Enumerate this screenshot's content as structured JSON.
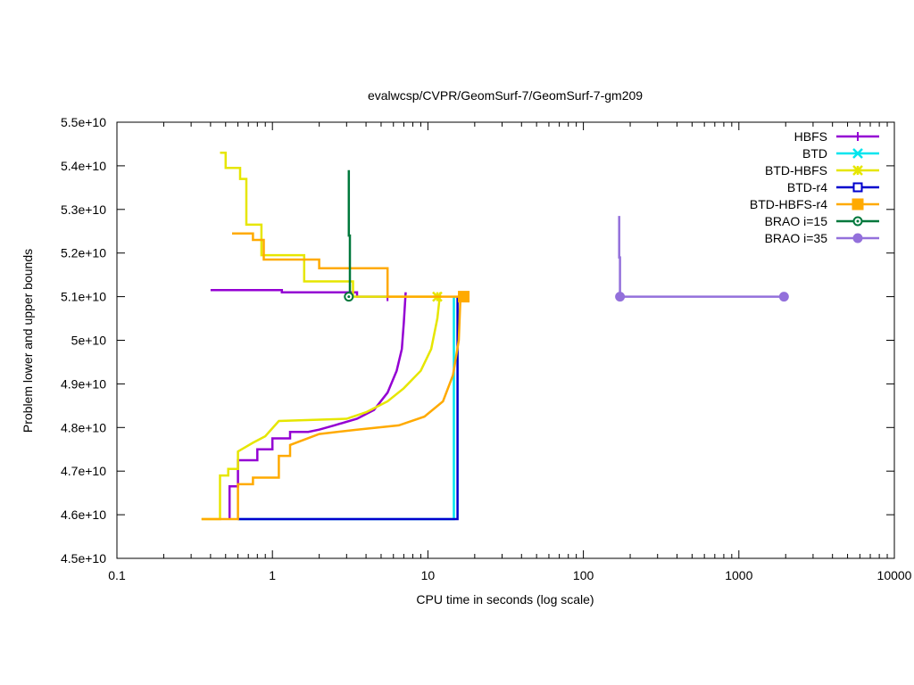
{
  "chart_data": {
    "type": "line",
    "title": "evalwcsp/CVPR/GeomSurf-7/GeomSurf-7-gm209",
    "xlabel": "CPU time in seconds (log scale)",
    "ylabel": "Problem lower and upper bounds",
    "xscale": "log",
    "xlim": [
      0.1,
      10000
    ],
    "ylim": [
      45000000000,
      55000000000
    ],
    "x_ticks": [
      {
        "v": 0.1,
        "label": "0.1"
      },
      {
        "v": 1,
        "label": "1"
      },
      {
        "v": 10,
        "label": "10"
      },
      {
        "v": 100,
        "label": "100"
      },
      {
        "v": 1000,
        "label": "1000"
      },
      {
        "v": 10000,
        "label": "10000"
      }
    ],
    "y_ticks": [
      {
        "v": 45000000000,
        "label": "4.5e+10"
      },
      {
        "v": 46000000000,
        "label": "4.6e+10"
      },
      {
        "v": 47000000000,
        "label": "4.7e+10"
      },
      {
        "v": 48000000000,
        "label": "4.8e+10"
      },
      {
        "v": 49000000000,
        "label": "4.9e+10"
      },
      {
        "v": 50000000000,
        "label": "5e+10"
      },
      {
        "v": 51000000000,
        "label": "5.1e+10"
      },
      {
        "v": 52000000000,
        "label": "5.2e+10"
      },
      {
        "v": 53000000000,
        "label": "5.3e+10"
      },
      {
        "v": 54000000000,
        "label": "5.4e+10"
      },
      {
        "v": 55000000000,
        "label": "5.5e+10"
      }
    ],
    "legend_position": "top-right",
    "grid": false,
    "series": [
      {
        "name": "HBFS",
        "color": "#9400d3",
        "marker": "plus",
        "marker_at": [
          5.5,
          51000000000
        ],
        "lines": [
          [
            [
              0.4,
              51150000000
            ],
            [
              1.15,
              51150000000
            ],
            [
              1.15,
              51100000000
            ],
            [
              3.5,
              51100000000
            ],
            [
              3.5,
              51000000000
            ],
            [
              5.5,
              51000000000
            ]
          ],
          [
            [
              0.53,
              45900000000
            ],
            [
              0.53,
              46650000000
            ],
            [
              0.6,
              46650000000
            ],
            [
              0.6,
              47250000000
            ],
            [
              0.8,
              47250000000
            ],
            [
              0.8,
              47500000000
            ],
            [
              1.0,
              47500000000
            ],
            [
              1.0,
              47750000000
            ],
            [
              1.3,
              47750000000
            ],
            [
              1.3,
              47900000000
            ],
            [
              1.7,
              47900000000
            ],
            [
              2.0,
              47950000000
            ],
            [
              2.5,
              48050000000
            ],
            [
              3.5,
              48200000000
            ],
            [
              4.5,
              48400000000
            ],
            [
              5.5,
              48800000000
            ],
            [
              6.3,
              49300000000
            ],
            [
              6.8,
              49800000000
            ],
            [
              7.0,
              50400000000
            ],
            [
              7.2,
              51100000000
            ]
          ]
        ]
      },
      {
        "name": "BTD",
        "color": "#00e5ee",
        "marker": "cross",
        "marker_at": null,
        "lines": [
          [
            [
              0.6,
              45900000000
            ],
            [
              14.7,
              45900000000
            ],
            [
              14.7,
              51000000000
            ]
          ]
        ]
      },
      {
        "name": "BTD-HBFS",
        "color": "#e6e600",
        "marker": "star",
        "marker_at": [
          11.5,
          51000000000
        ],
        "lines": [
          [
            [
              0.46,
              54300000000
            ],
            [
              0.5,
              54300000000
            ],
            [
              0.5,
              53950000000
            ],
            [
              0.62,
              53950000000
            ],
            [
              0.62,
              53700000000
            ],
            [
              0.68,
              53700000000
            ],
            [
              0.68,
              52650000000
            ],
            [
              0.85,
              52650000000
            ],
            [
              0.85,
              51950000000
            ],
            [
              1.6,
              51950000000
            ],
            [
              1.6,
              51350000000
            ],
            [
              3.3,
              51350000000
            ],
            [
              3.3,
              51000000000
            ],
            [
              11.5,
              51000000000
            ]
          ],
          [
            [
              0.35,
              45900000000
            ],
            [
              0.46,
              45900000000
            ],
            [
              0.46,
              46900000000
            ],
            [
              0.52,
              46900000000
            ],
            [
              0.52,
              47050000000
            ],
            [
              0.6,
              47050000000
            ],
            [
              0.6,
              47450000000
            ],
            [
              0.75,
              47650000000
            ],
            [
              0.9,
              47800000000
            ],
            [
              1.1,
              48150000000
            ],
            [
              3.0,
              48200000000
            ],
            [
              4.0,
              48350000000
            ],
            [
              5.5,
              48600000000
            ],
            [
              7.0,
              48900000000
            ],
            [
              9.0,
              49300000000
            ],
            [
              10.5,
              49800000000
            ],
            [
              11.5,
              50500000000
            ],
            [
              12.0,
              51100000000
            ]
          ]
        ]
      },
      {
        "name": "BTD-r4",
        "color": "#0000cd",
        "marker": "square-open",
        "marker_at": null,
        "lines": [
          [
            [
              0.6,
              45900000000
            ],
            [
              15.5,
              45900000000
            ],
            [
              15.5,
              51000000000
            ]
          ]
        ]
      },
      {
        "name": "BTD-HBFS-r4",
        "color": "#ffaa00",
        "marker": "square-filled",
        "marker_at": [
          17,
          51000000000
        ],
        "lines": [
          [
            [
              0.55,
              52450000000
            ],
            [
              0.75,
              52450000000
            ],
            [
              0.75,
              52300000000
            ],
            [
              0.88,
              52300000000
            ],
            [
              0.88,
              51850000000
            ],
            [
              2.0,
              51850000000
            ],
            [
              2.0,
              51650000000
            ],
            [
              5.5,
              51650000000
            ],
            [
              5.5,
              51000000000
            ],
            [
              17,
              51000000000
            ]
          ],
          [
            [
              0.35,
              45900000000
            ],
            [
              0.6,
              45900000000
            ],
            [
              0.6,
              46700000000
            ],
            [
              0.75,
              46700000000
            ],
            [
              0.75,
              46850000000
            ],
            [
              1.1,
              46850000000
            ],
            [
              1.1,
              47350000000
            ],
            [
              1.3,
              47350000000
            ],
            [
              1.3,
              47600000000
            ],
            [
              2.0,
              47850000000
            ],
            [
              3.5,
              47950000000
            ],
            [
              6.5,
              48050000000
            ],
            [
              9.5,
              48250000000
            ],
            [
              12.5,
              48600000000
            ],
            [
              14.5,
              49200000000
            ],
            [
              15.8,
              50000000000
            ],
            [
              16.2,
              51000000000
            ]
          ]
        ]
      },
      {
        "name": "BRAO i=15",
        "color": "#00783c",
        "marker": "circle-open",
        "marker_at": [
          3.1,
          51000000000
        ],
        "lines": [
          [
            [
              3.1,
              53900000000
            ],
            [
              3.1,
              52400000000
            ],
            [
              3.15,
              52400000000
            ],
            [
              3.15,
              51000000000
            ]
          ]
        ]
      },
      {
        "name": "BRAO i=35",
        "color": "#9370db",
        "marker": "circle-filled",
        "marker_at": [
          172,
          51000000000
        ],
        "lines": [
          [
            [
              170,
              52850000000
            ],
            [
              170,
              51900000000
            ],
            [
              172,
              51900000000
            ],
            [
              172,
              51000000000
            ],
            [
              1950,
              51000000000
            ]
          ]
        ],
        "extra_markers": [
          [
            1950,
            51000000000
          ]
        ]
      }
    ]
  }
}
